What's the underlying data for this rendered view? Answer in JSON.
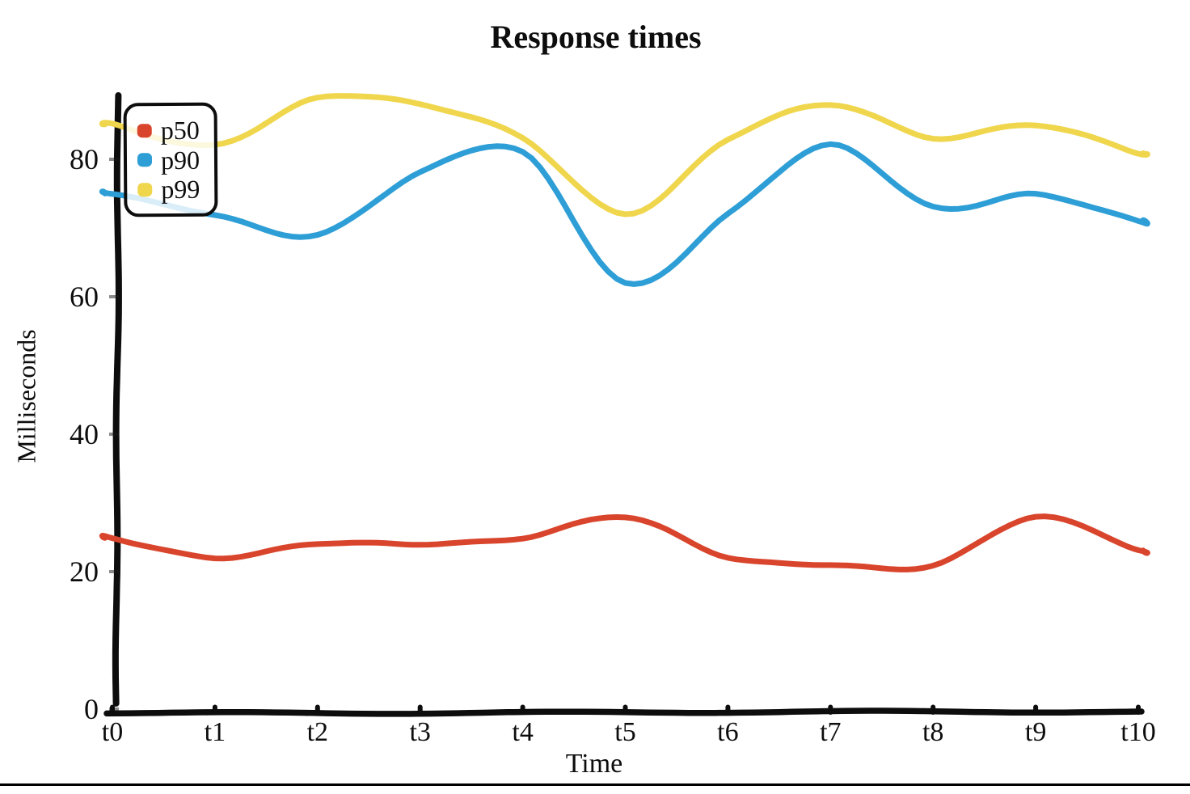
{
  "page": {
    "background": "#ffffff",
    "bottom_rule_color": "#000000"
  },
  "chart_data": {
    "type": "line",
    "style": "xkcd-handdrawn",
    "title": "Response times",
    "xlabel": "Time",
    "ylabel": "Milliseconds",
    "categories": [
      "t0",
      "t1",
      "t2",
      "t3",
      "t4",
      "t5",
      "t6",
      "t7",
      "t8",
      "t9",
      "t10"
    ],
    "y_ticks": [
      0,
      20,
      40,
      60,
      80
    ],
    "ylim": [
      0,
      90
    ],
    "grid": false,
    "legend": {
      "position": "upper-left",
      "items": [
        "p50",
        "p90",
        "p99"
      ]
    },
    "series": [
      {
        "name": "p50",
        "color": "#d9452c",
        "values": [
          25,
          22,
          24,
          24,
          25,
          28,
          22,
          21,
          21,
          28,
          23
        ]
      },
      {
        "name": "p90",
        "color": "#2e9ed6",
        "values": [
          75,
          72,
          69,
          78,
          81,
          62,
          72,
          82,
          73,
          75,
          71
        ]
      },
      {
        "name": "p99",
        "color": "#efd64c",
        "values": [
          85,
          82,
          89,
          88,
          83,
          72,
          83,
          88,
          83,
          85,
          81
        ]
      }
    ],
    "axis_color": "#0d0d0d"
  }
}
